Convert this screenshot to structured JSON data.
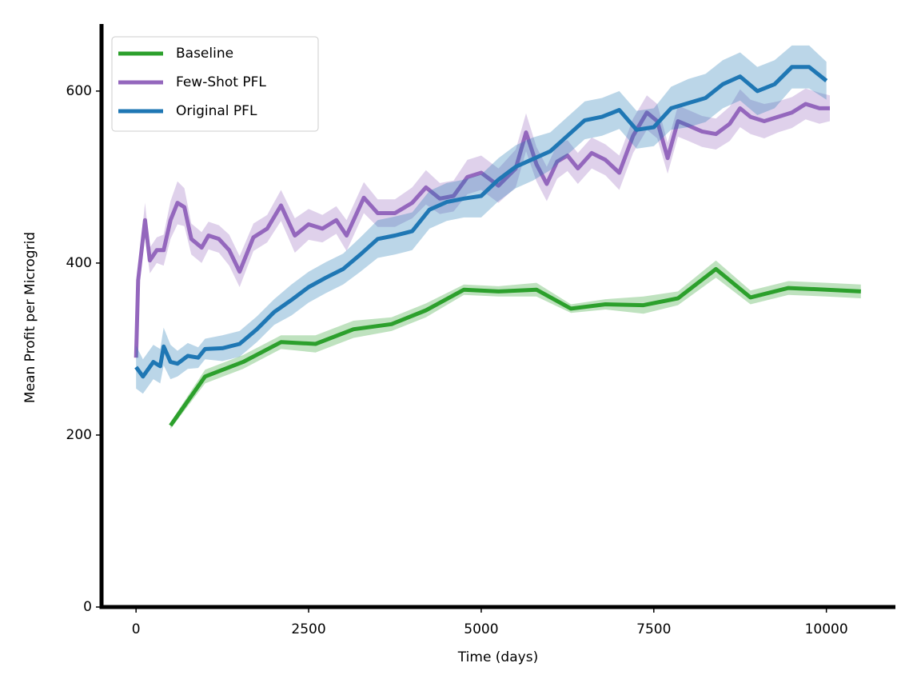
{
  "chart_data": {
    "type": "line",
    "x_label": "Time (days)",
    "y_label": "Mean Profit per Microgrid",
    "xlim": [
      -500,
      11000
    ],
    "ylim": [
      0,
      678
    ],
    "xticks": [
      0,
      2500,
      5000,
      7500,
      10000
    ],
    "yticks": [
      0,
      200,
      400,
      600
    ],
    "legend": "upper-left",
    "band_opacity": 0.3,
    "series": [
      {
        "name": "Baseline",
        "color": "#2ca02c",
        "x": [
          500,
          1000,
          1550,
          2100,
          2600,
          3150,
          3700,
          4200,
          4750,
          5250,
          5800,
          6300,
          6800,
          7350,
          7850,
          8400,
          8900,
          9450,
          10000,
          10500
        ],
        "values": [
          211,
          268,
          285,
          308,
          306,
          323,
          329,
          345,
          369,
          367,
          369,
          347,
          352,
          351,
          359,
          393,
          360,
          371,
          369,
          367
        ],
        "errors": [
          4,
          8,
          8,
          8,
          10,
          10,
          8,
          8,
          6,
          6,
          8,
          5,
          6,
          10,
          8,
          10,
          8,
          8,
          8,
          8
        ]
      },
      {
        "name": "Few-Shot PFL",
        "color": "#9467bd",
        "x": [
          0,
          30,
          130,
          200,
          300,
          400,
          500,
          600,
          700,
          800,
          950,
          1050,
          1200,
          1350,
          1500,
          1700,
          1900,
          2100,
          2300,
          2500,
          2700,
          2900,
          3050,
          3300,
          3500,
          3750,
          4000,
          4200,
          4400,
          4600,
          4800,
          5000,
          5250,
          5500,
          5650,
          5800,
          5950,
          6100,
          6250,
          6400,
          6600,
          6800,
          7000,
          7200,
          7400,
          7550,
          7700,
          7850,
          8000,
          8200,
          8400,
          8600,
          8750,
          8900,
          9100,
          9300,
          9500,
          9700,
          9900,
          10050
        ],
        "values": [
          290,
          380,
          450,
          403,
          415,
          415,
          450,
          470,
          465,
          428,
          418,
          432,
          428,
          415,
          390,
          430,
          440,
          467,
          432,
          445,
          440,
          450,
          432,
          476,
          458,
          458,
          470,
          488,
          475,
          478,
          500,
          505,
          490,
          510,
          552,
          515,
          492,
          518,
          525,
          510,
          528,
          520,
          505,
          548,
          575,
          565,
          522,
          565,
          560,
          553,
          550,
          562,
          580,
          570,
          565,
          570,
          575,
          585,
          580,
          580
        ],
        "errors": [
          5,
          15,
          20,
          15,
          15,
          18,
          22,
          25,
          22,
          18,
          18,
          16,
          16,
          18,
          18,
          16,
          16,
          18,
          20,
          18,
          16,
          16,
          18,
          18,
          16,
          16,
          18,
          20,
          18,
          18,
          20,
          20,
          20,
          22,
          22,
          20,
          20,
          20,
          18,
          18,
          18,
          18,
          20,
          20,
          20,
          20,
          18,
          18,
          18,
          18,
          18,
          20,
          22,
          20,
          20,
          18,
          18,
          18,
          18,
          15
        ]
      },
      {
        "name": "Original PFL",
        "color": "#1f77b4",
        "x": [
          0,
          100,
          250,
          350,
          400,
          500,
          600,
          750,
          900,
          1000,
          1250,
          1500,
          1750,
          2000,
          2250,
          2500,
          2750,
          3000,
          3250,
          3500,
          3750,
          4000,
          4250,
          4500,
          4750,
          5000,
          5250,
          5500,
          5750,
          6000,
          6250,
          6500,
          6750,
          7000,
          7250,
          7500,
          7750,
          8000,
          8250,
          8500,
          8750,
          9000,
          9250,
          9500,
          9750,
          10000
        ],
        "values": [
          279,
          268,
          285,
          280,
          303,
          285,
          283,
          292,
          290,
          300,
          301,
          306,
          323,
          343,
          357,
          372,
          383,
          393,
          410,
          428,
          432,
          437,
          462,
          471,
          475,
          478,
          497,
          512,
          521,
          530,
          548,
          566,
          570,
          578,
          555,
          558,
          580,
          586,
          592,
          608,
          617,
          600,
          608,
          628,
          628,
          612
        ],
        "errors": [
          25,
          20,
          20,
          20,
          22,
          20,
          15,
          15,
          12,
          12,
          15,
          15,
          15,
          15,
          18,
          18,
          18,
          18,
          20,
          22,
          22,
          22,
          22,
          22,
          22,
          25,
          25,
          25,
          25,
          22,
          22,
          22,
          22,
          22,
          22,
          22,
          25,
          28,
          28,
          28,
          28,
          28,
          28,
          25,
          25,
          22
        ]
      }
    ]
  }
}
